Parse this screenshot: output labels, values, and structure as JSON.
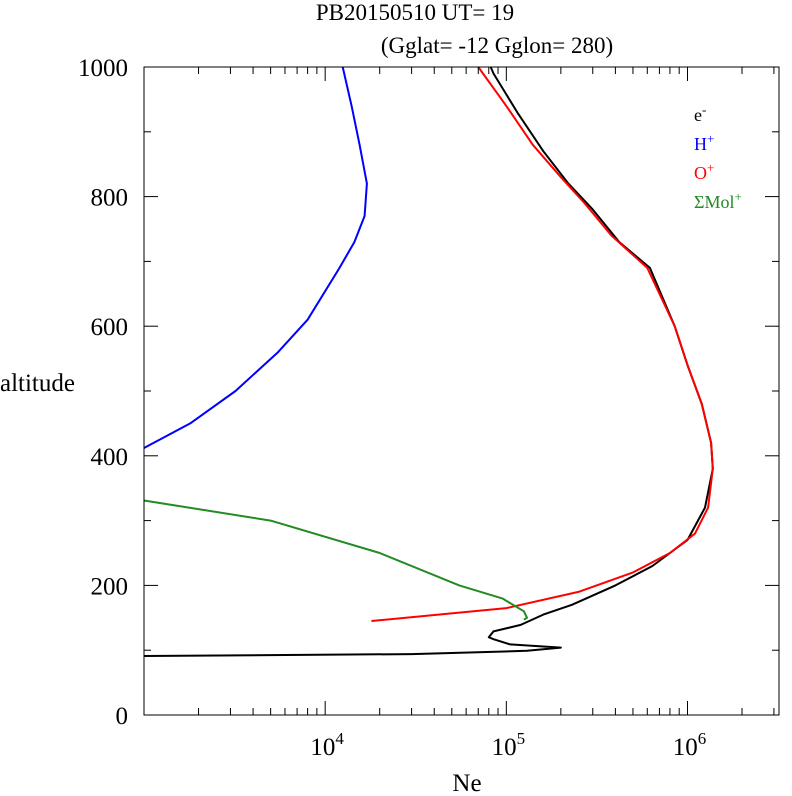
{
  "chart_data": {
    "type": "line",
    "title": "PB20150510   UT=  19",
    "subtitle": "(Gglat= -12   Gglon=  280)",
    "xlabel": "Ne",
    "ylabel": "altitude",
    "x_scale": "log",
    "xlim": [
      1000,
      3200000
    ],
    "ylim": [
      0,
      1000
    ],
    "x_ticks": [
      {
        "value": 10000,
        "base": "10",
        "exp": "4"
      },
      {
        "value": 100000,
        "base": "10",
        "exp": "5"
      },
      {
        "value": 1000000,
        "base": "10",
        "exp": "6"
      }
    ],
    "y_ticks": [
      "0",
      "200",
      "400",
      "600",
      "800",
      "1000"
    ],
    "y_tick_values": [
      0,
      200,
      400,
      600,
      800,
      1000
    ],
    "legend_position": "top-right",
    "series": [
      {
        "name": "e",
        "sup": "-",
        "color": "#000000",
        "points": [
          [
            1000,
            91
          ],
          [
            30000,
            94
          ],
          [
            130000,
            99
          ],
          [
            200000,
            104
          ],
          [
            105000,
            109
          ],
          [
            85000,
            117
          ],
          [
            80000,
            120
          ],
          [
            85000,
            129
          ],
          [
            120000,
            139
          ],
          [
            160000,
            155
          ],
          [
            230000,
            170
          ],
          [
            400000,
            200
          ],
          [
            640000,
            230
          ],
          [
            1000000,
            270
          ],
          [
            1250000,
            320
          ],
          [
            1380000,
            380
          ],
          [
            1350000,
            420
          ],
          [
            1200000,
            480
          ],
          [
            1000000,
            540
          ],
          [
            850000,
            600
          ],
          [
            620000,
            690
          ],
          [
            420000,
            730
          ],
          [
            300000,
            780
          ],
          [
            220000,
            820
          ],
          [
            160000,
            870
          ],
          [
            115000,
            930
          ],
          [
            85000,
            990
          ],
          [
            82000,
            1000
          ]
        ]
      },
      {
        "name": "H",
        "sup": "+",
        "color": "#0000ff",
        "points": [
          [
            1000,
            412
          ],
          [
            1800,
            450
          ],
          [
            3200,
            500
          ],
          [
            5500,
            560
          ],
          [
            8000,
            610
          ],
          [
            12000,
            690
          ],
          [
            14500,
            730
          ],
          [
            16500,
            770
          ],
          [
            17000,
            820
          ],
          [
            15500,
            880
          ],
          [
            14000,
            940
          ],
          [
            12500,
            1000
          ]
        ]
      },
      {
        "name": "O",
        "sup": "+",
        "color": "#ff0000",
        "points": [
          [
            18000,
            145
          ],
          [
            100000,
            165
          ],
          [
            250000,
            190
          ],
          [
            500000,
            220
          ],
          [
            800000,
            250
          ],
          [
            1100000,
            280
          ],
          [
            1300000,
            320
          ],
          [
            1380000,
            380
          ],
          [
            1350000,
            420
          ],
          [
            1200000,
            480
          ],
          [
            1000000,
            540
          ],
          [
            850000,
            600
          ],
          [
            600000,
            690
          ],
          [
            380000,
            740
          ],
          [
            270000,
            790
          ],
          [
            200000,
            830
          ],
          [
            140000,
            880
          ],
          [
            100000,
            940
          ],
          [
            70000,
            1000
          ]
        ]
      },
      {
        "name": "ΣMol",
        "sup": "+",
        "color": "#228b22",
        "points": [
          [
            1000,
            331
          ],
          [
            5000,
            300
          ],
          [
            20000,
            250
          ],
          [
            55000,
            200
          ],
          [
            95000,
            180
          ],
          [
            125000,
            160
          ],
          [
            130000,
            150
          ],
          [
            125000,
            147
          ]
        ]
      }
    ]
  }
}
